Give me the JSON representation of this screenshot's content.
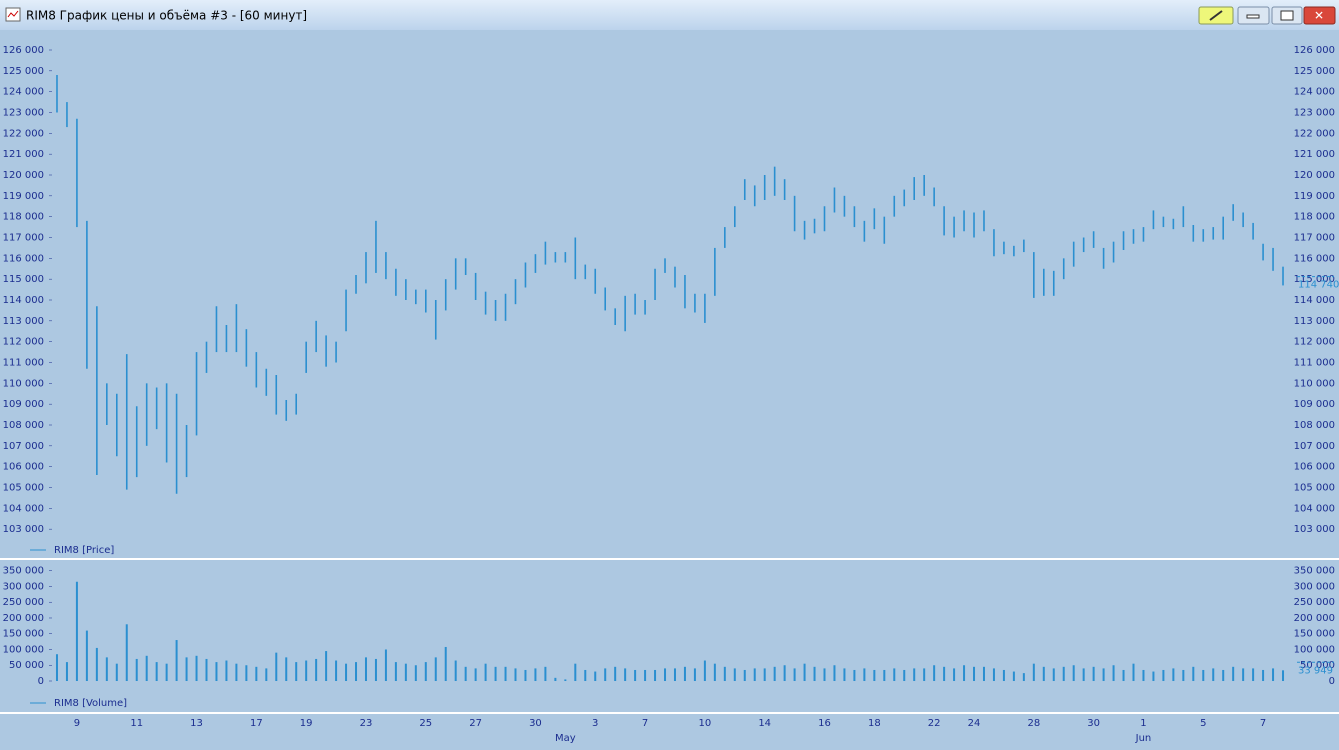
{
  "window": {
    "title": "RIM8 График цены и объёма #3 - [60 минут]"
  },
  "chart_data": [
    {
      "type": "range-bar",
      "series": [
        {
          "name": "RIM8 [Price]",
          "color": "#2a8fd0",
          "high": [
            124800,
            123500,
            122700,
            117800,
            113700,
            110000,
            109500,
            111400,
            108900,
            110000,
            109800,
            110000,
            109500,
            108000,
            111500,
            112000,
            113700,
            112800,
            113800,
            112600,
            111500,
            110700,
            110400,
            109200,
            109500,
            112000,
            113000,
            112300,
            112000,
            114500,
            115200,
            116300,
            117800,
            116300,
            115500,
            115000,
            114500,
            114500,
            114000,
            115000,
            116000,
            116000,
            115300,
            114400,
            114000,
            114300,
            115000,
            115800,
            116200,
            116800,
            116300,
            116300,
            117000,
            115700,
            115500,
            114600,
            113600,
            114200,
            114300,
            114000,
            115500,
            116000,
            115600,
            115200,
            114300,
            114300,
            116500,
            117500,
            118500,
            119800,
            119500,
            120000,
            120400,
            119800,
            119000,
            117800,
            117900,
            118500,
            119400,
            119000,
            118500,
            117800,
            118400,
            118000,
            119000,
            119300,
            119900,
            120000,
            119400,
            118500,
            118000,
            118300,
            118200,
            118300,
            117400,
            116800,
            116600,
            116900,
            116300,
            115500,
            115400,
            116000,
            116800,
            117000,
            117300,
            116500,
            116800,
            117300,
            117400,
            117500,
            118300,
            118000,
            117900,
            118500,
            117600,
            117400,
            117500,
            118000,
            118600,
            118200,
            117700,
            116700,
            116500,
            115600
          ],
          "low": [
            123000,
            122300,
            117500,
            110700,
            105600,
            108000,
            106500,
            104900,
            105500,
            107000,
            107800,
            106200,
            104700,
            105500,
            107500,
            110500,
            111500,
            111500,
            111500,
            110800,
            109800,
            109400,
            108500,
            108200,
            108500,
            110500,
            111500,
            110800,
            111000,
            112500,
            114300,
            114800,
            115300,
            115000,
            114200,
            114000,
            113800,
            113400,
            112100,
            113500,
            114500,
            115200,
            114000,
            113300,
            113000,
            113000,
            113800,
            114600,
            115300,
            115700,
            115800,
            115800,
            115000,
            115000,
            114300,
            113500,
            112800,
            112500,
            113300,
            113300,
            114000,
            115300,
            114600,
            113600,
            113400,
            112900,
            114200,
            116500,
            117500,
            118800,
            118500,
            118800,
            119000,
            118800,
            117300,
            116900,
            117200,
            117300,
            118200,
            118000,
            117500,
            116800,
            117400,
            116700,
            118000,
            118500,
            118800,
            119000,
            118500,
            117100,
            117000,
            117300,
            117000,
            117300,
            116100,
            116200,
            116100,
            116300,
            114100,
            114200,
            114200,
            115000,
            115600,
            116300,
            116500,
            115500,
            115800,
            116400,
            116700,
            116800,
            117400,
            117500,
            117400,
            117500,
            116800,
            116800,
            116900,
            116900,
            117800,
            117500,
            116900,
            115900,
            115400,
            114700
          ]
        }
      ],
      "last_value": {
        "value": 114740,
        "label": "114 740"
      },
      "ylim": [
        102240,
        126480
      ],
      "yticks": [
        {
          "value": 103000,
          "label": "103 000"
        },
        {
          "value": 104000,
          "label": "104 000"
        },
        {
          "value": 105000,
          "label": "105 000"
        },
        {
          "value": 106000,
          "label": "106 000"
        },
        {
          "value": 107000,
          "label": "107 000"
        },
        {
          "value": 108000,
          "label": "108 000"
        },
        {
          "value": 109000,
          "label": "109 000"
        },
        {
          "value": 110000,
          "label": "110 000"
        },
        {
          "value": 111000,
          "label": "111 000"
        },
        {
          "value": 112000,
          "label": "112 000"
        },
        {
          "value": 113000,
          "label": "113 000"
        },
        {
          "value": 114000,
          "label": "114 000"
        },
        {
          "value": 115000,
          "label": "115 000"
        },
        {
          "value": 116000,
          "label": "116 000"
        },
        {
          "value": 117000,
          "label": "117 000"
        },
        {
          "value": 118000,
          "label": "118 000"
        },
        {
          "value": 119000,
          "label": "119 000"
        },
        {
          "value": 120000,
          "label": "120 000"
        },
        {
          "value": 121000,
          "label": "121 000"
        },
        {
          "value": 122000,
          "label": "122 000"
        },
        {
          "value": 123000,
          "label": "123 000"
        },
        {
          "value": 124000,
          "label": "124 000"
        },
        {
          "value": 125000,
          "label": "125 000"
        },
        {
          "value": 126000,
          "label": "126 000"
        }
      ],
      "legend": "lower-left",
      "grid": false
    },
    {
      "type": "bar",
      "categories": [
        null,
        null,
        "9",
        null,
        null,
        null,
        null,
        null,
        "11",
        null,
        null,
        null,
        null,
        null,
        "13",
        null,
        null,
        null,
        null,
        null,
        "17",
        null,
        null,
        null,
        null,
        "19",
        null,
        null,
        null,
        null,
        null,
        "23",
        null,
        null,
        null,
        null,
        null,
        "25",
        null,
        null,
        null,
        null,
        "27",
        null,
        null,
        null,
        null,
        null,
        "30",
        null,
        null,
        null,
        null,
        null,
        "3",
        null,
        null,
        null,
        null,
        "7",
        null,
        null,
        null,
        null,
        null,
        "10",
        null,
        null,
        null,
        null,
        null,
        "14",
        null,
        null,
        null,
        null,
        null,
        "16",
        null,
        null,
        null,
        null,
        "18",
        null,
        null,
        null,
        null,
        null,
        "22",
        null,
        null,
        null,
        "24",
        null,
        null,
        null,
        null,
        null,
        "28",
        null,
        null,
        null,
        null,
        null,
        "30",
        null,
        null,
        null,
        null,
        "1",
        null,
        null,
        null,
        null,
        null,
        "5",
        null,
        null,
        null,
        null,
        null,
        "7",
        null,
        null
      ],
      "categories2": [
        null,
        null,
        null,
        null,
        null,
        null,
        null,
        null,
        null,
        null,
        null,
        null,
        null,
        null,
        null,
        null,
        null,
        null,
        null,
        null,
        null,
        null,
        null,
        null,
        null,
        null,
        null,
        null,
        null,
        null,
        null,
        null,
        null,
        null,
        null,
        null,
        null,
        null,
        null,
        null,
        null,
        null,
        null,
        null,
        null,
        null,
        null,
        null,
        null,
        null,
        null,
        "May",
        null,
        null,
        null,
        null,
        null,
        null,
        null,
        null,
        null,
        null,
        null,
        null,
        null,
        null,
        null,
        null,
        null,
        null,
        null,
        null,
        null,
        null,
        null,
        null,
        null,
        null,
        null,
        null,
        null,
        null,
        null,
        null,
        null,
        null,
        null,
        null,
        null,
        null,
        null,
        null,
        null,
        null,
        null,
        null,
        null,
        null,
        null,
        null,
        null,
        null,
        null,
        null,
        null,
        null,
        null,
        null,
        null,
        "Jun",
        null,
        null,
        null,
        null,
        null,
        null,
        null,
        null,
        null,
        null,
        null,
        null,
        null,
        null
      ],
      "series": [
        {
          "name": "RIM8 [Volume]",
          "color": "#2a8fd0",
          "values": [
            85000,
            60000,
            315000,
            160000,
            105000,
            75000,
            55000,
            180000,
            70000,
            80000,
            60000,
            55000,
            130000,
            75000,
            80000,
            70000,
            60000,
            65000,
            55000,
            50000,
            45000,
            40000,
            90000,
            75000,
            60000,
            65000,
            70000,
            95000,
            65000,
            55000,
            60000,
            75000,
            70000,
            100000,
            60000,
            55000,
            50000,
            60000,
            75000,
            108000,
            65000,
            45000,
            40000,
            55000,
            45000,
            45000,
            40000,
            35000,
            40000,
            45000,
            10000,
            5000,
            55000,
            35000,
            30000,
            40000,
            45000,
            40000,
            35000,
            35000,
            35000,
            40000,
            40000,
            45000,
            40000,
            65000,
            55000,
            45000,
            40000,
            35000,
            40000,
            40000,
            45000,
            50000,
            40000,
            55000,
            45000,
            40000,
            50000,
            40000,
            35000,
            40000,
            35000,
            35000,
            40000,
            35000,
            40000,
            40000,
            50000,
            45000,
            40000,
            50000,
            45000,
            45000,
            40000,
            35000,
            30000,
            25000,
            55000,
            45000,
            40000,
            45000,
            50000,
            40000,
            45000,
            40000,
            50000,
            35000,
            55000,
            35000,
            30000,
            35000,
            40000,
            35000,
            45000,
            35000,
            40000,
            35000,
            45000,
            40000,
            40000,
            35000,
            40000,
            33949
          ]
        }
      ],
      "last_value": {
        "value": 33949,
        "label": "33 949"
      },
      "ylim": [
        0,
        365000
      ],
      "yticks": [
        0,
        {
          "value": 50000,
          "label": "50 000"
        },
        {
          "value": 100000,
          "label": "100 000"
        },
        {
          "value": 150000,
          "label": "150 000"
        },
        {
          "value": 200000,
          "label": "200 000"
        },
        {
          "value": 250000,
          "label": "250 000"
        },
        {
          "value": 300000,
          "label": "300 000"
        },
        {
          "value": 350000,
          "label": "350 000"
        }
      ],
      "legend": "lower-left",
      "grid": false
    }
  ]
}
